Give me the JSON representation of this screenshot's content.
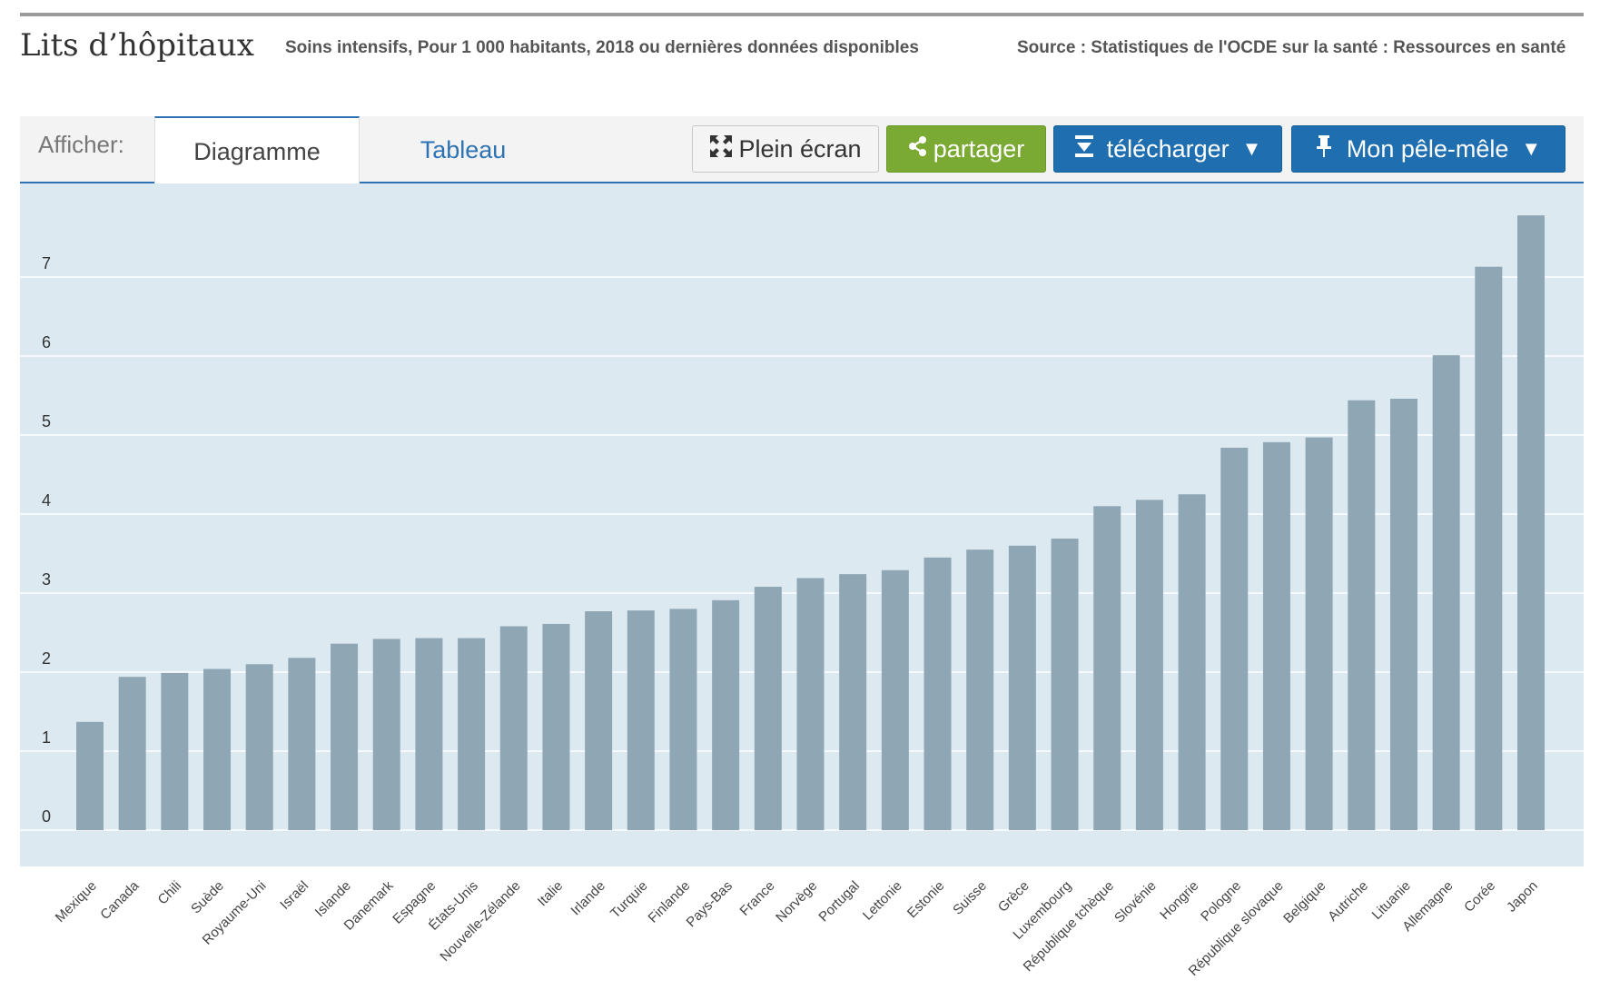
{
  "header": {
    "title": "Lits d’hôpitaux",
    "subtitle": "Soins intensifs, Pour 1 000 habitants, 2018 ou dernières données disponibles",
    "source": "Source : Statistiques de l'OCDE sur la santé : Ressources en santé"
  },
  "toolbar": {
    "show_label": "Afficher:",
    "tabs": [
      {
        "label": "Diagramme",
        "active": true
      },
      {
        "label": "Tableau",
        "active": false
      }
    ],
    "fullscreen_label": "Plein écran",
    "share_label": "partager",
    "download_label": "télécharger",
    "mypanel_label": "Mon pêle-mêle",
    "caret": "▼",
    "colors": {
      "share": "#7aaa33",
      "primary": "#1f6fb0",
      "tab_active_border": "#2d73b3"
    }
  },
  "chart_data": {
    "type": "bar",
    "title": "",
    "xlabel": "",
    "ylabel": "",
    "ylim": [
      0,
      7.8
    ],
    "yticks": [
      0,
      1,
      2,
      3,
      4,
      5,
      6,
      7
    ],
    "grid": true,
    "bar_color": "#8fa6b4",
    "plot_background": "#dce9f1",
    "categories": [
      "Mexique",
      "Canada",
      "Chili",
      "Suède",
      "Royaume-Uni",
      "Israël",
      "Islande",
      "Danemark",
      "Espagne",
      "États-Unis",
      "Nouvelle-Zélande",
      "Italie",
      "Irlande",
      "Turquie",
      "Finlande",
      "Pays-Bas",
      "France",
      "Norvège",
      "Portugal",
      "Lettonie",
      "Estonie",
      "Suisse",
      "Grèce",
      "Luxembourg",
      "République tchèque",
      "Slovénie",
      "Hongrie",
      "Pologne",
      "République slovaque",
      "Belgique",
      "Autriche",
      "Lituanie",
      "Allemagne",
      "Corée",
      "Japon"
    ],
    "values": [
      1.37,
      1.94,
      1.99,
      2.04,
      2.1,
      2.18,
      2.36,
      2.42,
      2.43,
      2.43,
      2.58,
      2.61,
      2.77,
      2.78,
      2.8,
      2.91,
      3.08,
      3.19,
      3.24,
      3.29,
      3.45,
      3.55,
      3.6,
      3.69,
      4.1,
      4.18,
      4.25,
      4.84,
      4.91,
      4.97,
      5.44,
      5.46,
      6.01,
      7.13,
      7.78
    ]
  }
}
